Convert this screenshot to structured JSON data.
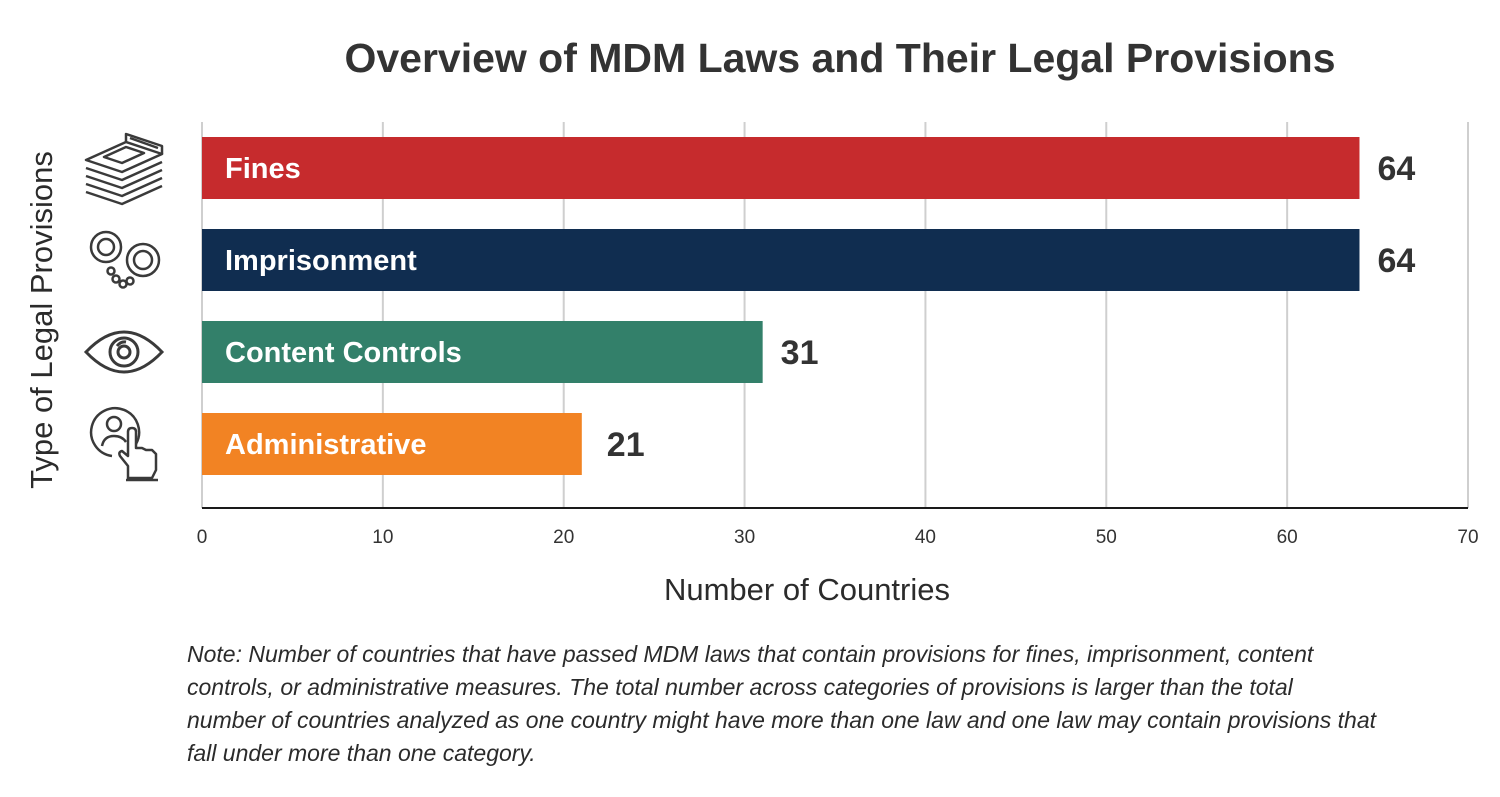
{
  "chart_data": {
    "type": "bar",
    "orientation": "horizontal",
    "title": "Overview of MDM Laws and Their Legal Provisions",
    "xlabel": "Number of Countries",
    "ylabel": "Type of Legal Provisions",
    "xlim": [
      0,
      70
    ],
    "xticks": [
      0,
      10,
      20,
      30,
      40,
      50,
      60,
      70
    ],
    "grid": true,
    "categories": [
      "Fines",
      "Imprisonment",
      "Content Controls",
      "Administrative"
    ],
    "values": [
      64,
      64,
      31,
      21
    ],
    "colors": [
      "#c62b2d",
      "#102d50",
      "#33806a",
      "#f28323"
    ],
    "icons": [
      "money-stack-icon",
      "handcuffs-icon",
      "eye-icon",
      "user-touch-icon"
    ]
  },
  "note": "Note: Number of countries that have passed MDM laws that contain provisions for fines, imprisonment, content controls, or administrative measures. The total number across categories of provisions is larger than the total number of countries analyzed as one country might have more than one law and one law may contain provisions that fall under more than one category."
}
